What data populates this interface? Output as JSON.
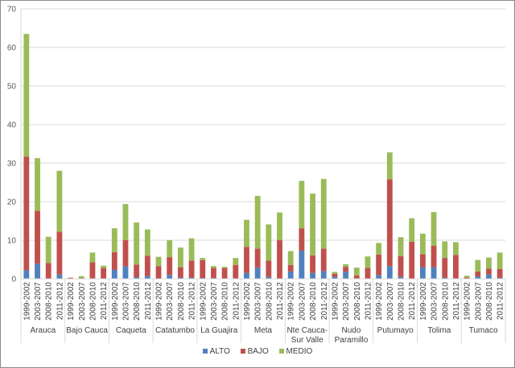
{
  "chart_data": {
    "type": "bar",
    "stacked": true,
    "title": "",
    "xlabel": "",
    "ylabel": "",
    "ylim": [
      0,
      70
    ],
    "yticks": [
      0,
      10,
      20,
      30,
      40,
      50,
      60,
      70
    ],
    "grid": true,
    "legend_position": "bottom",
    "colors": {
      "ALTO": "#4f81bd",
      "BAJO": "#c0504d",
      "MEDIO": "#9bbb59"
    },
    "periods": [
      "1999-2002",
      "2003-2007",
      "2008-2010",
      "2011-2012"
    ],
    "groups": [
      "Arauca",
      "Bajo Cauca",
      "Caqueta",
      "Catatumbo",
      "La Guajira",
      "Meta",
      "Nte Cauca-Sur Valle",
      "Nudo Paramillo",
      "Putumayo",
      "Tolima",
      "Tumaco"
    ],
    "group_label_lines": [
      [
        "Arauca"
      ],
      [
        "Bajo Cauca"
      ],
      [
        "Caqueta"
      ],
      [
        "Catatumbo"
      ],
      [
        "La Guajira"
      ],
      [
        "Meta"
      ],
      [
        "Nte Cauca-",
        "Sur Valle"
      ],
      [
        "Nudo",
        "Paramillo"
      ],
      [
        "Putumayo"
      ],
      [
        "Tolima"
      ],
      [
        "Tumaco"
      ]
    ],
    "series": [
      {
        "name": "ALTO",
        "values": [
          [
            2.2,
            3.9,
            0.0,
            1.1
          ],
          [
            0.0,
            0.0,
            0.0,
            0.0
          ],
          [
            2.3,
            3.2,
            0.4,
            0.7
          ],
          [
            0.0,
            1.0,
            0.3,
            0.3
          ],
          [
            0.2,
            0.2,
            0.0,
            0.0
          ],
          [
            1.5,
            2.9,
            0.5,
            0.0
          ],
          [
            1.9,
            7.3,
            1.5,
            2.0
          ],
          [
            0.5,
            1.8,
            0.0,
            0.0
          ],
          [
            1.0,
            3.3,
            0.5,
            0.0
          ],
          [
            3.0,
            3.0,
            0.3,
            0.0
          ],
          [
            0.0,
            0.6,
            1.1,
            0.2
          ]
        ]
      },
      {
        "name": "BAJO",
        "values": [
          [
            29.5,
            13.7,
            4.1,
            11.1
          ],
          [
            0.3,
            0.2,
            4.3,
            2.8
          ],
          [
            4.6,
            6.8,
            3.3,
            5.3
          ],
          [
            3.3,
            4.6,
            2.7,
            4.4
          ],
          [
            4.6,
            2.6,
            2.8,
            3.6
          ],
          [
            6.8,
            4.9,
            4.2,
            10.0
          ],
          [
            1.7,
            5.8,
            4.6,
            5.8
          ],
          [
            0.8,
            1.3,
            0.9,
            2.8
          ],
          [
            5.3,
            22.5,
            5.4,
            9.6
          ],
          [
            3.4,
            5.6,
            5.1,
            6.2
          ],
          [
            0.3,
            1.3,
            1.5,
            2.3
          ]
        ]
      },
      {
        "name": "MEDIO",
        "values": [
          [
            31.8,
            13.7,
            6.8,
            15.8
          ],
          [
            0.0,
            0.5,
            2.5,
            0.6
          ],
          [
            6.2,
            9.4,
            10.9,
            6.8
          ],
          [
            2.4,
            4.4,
            5.1,
            5.8
          ],
          [
            0.6,
            0.5,
            0.3,
            1.8
          ],
          [
            7.0,
            13.7,
            9.4,
            7.2
          ],
          [
            3.6,
            12.3,
            16.0,
            18.1
          ],
          [
            0.5,
            0.7,
            2.0,
            3.0
          ],
          [
            3.0,
            7.0,
            4.9,
            6.1
          ],
          [
            5.3,
            8.7,
            4.3,
            3.3
          ],
          [
            0.5,
            3.0,
            2.9,
            4.3
          ]
        ]
      }
    ]
  },
  "legend": {
    "items": [
      {
        "label": "ALTO",
        "color": "#4f81bd"
      },
      {
        "label": "BAJO",
        "color": "#c0504d"
      },
      {
        "label": "MEDIO",
        "color": "#9bbb59"
      }
    ]
  }
}
